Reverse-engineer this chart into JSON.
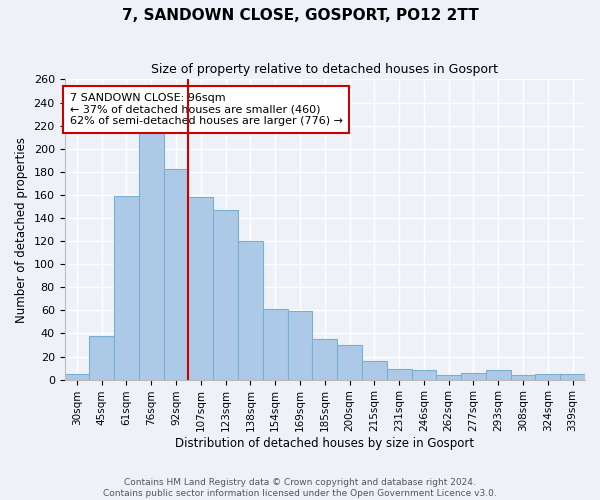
{
  "title": "7, SANDOWN CLOSE, GOSPORT, PO12 2TT",
  "subtitle": "Size of property relative to detached houses in Gosport",
  "xlabel": "Distribution of detached houses by size in Gosport",
  "ylabel": "Number of detached properties",
  "categories": [
    "30sqm",
    "45sqm",
    "61sqm",
    "76sqm",
    "92sqm",
    "107sqm",
    "123sqm",
    "138sqm",
    "154sqm",
    "169sqm",
    "185sqm",
    "200sqm",
    "215sqm",
    "231sqm",
    "246sqm",
    "262sqm",
    "277sqm",
    "293sqm",
    "308sqm",
    "324sqm",
    "339sqm"
  ],
  "values": [
    5,
    38,
    159,
    219,
    182,
    158,
    147,
    120,
    61,
    59,
    35,
    30,
    16,
    9,
    8,
    4,
    6,
    8,
    4,
    5,
    5
  ],
  "bar_color": "#adc9e8",
  "bar_edge_color": "#7aafd4",
  "highlight_bar_index": 4,
  "highlight_line_color": "#cc0000",
  "annotation_title": "7 SANDOWN CLOSE: 96sqm",
  "annotation_line1": "← 37% of detached houses are smaller (460)",
  "annotation_line2": "62% of semi-detached houses are larger (776) →",
  "annotation_box_color": "#ffffff",
  "annotation_box_edge": "#cc0000",
  "ylim": [
    0,
    260
  ],
  "yticks": [
    0,
    20,
    40,
    60,
    80,
    100,
    120,
    140,
    160,
    180,
    200,
    220,
    240,
    260
  ],
  "footer1": "Contains HM Land Registry data © Crown copyright and database right 2024.",
  "footer2": "Contains public sector information licensed under the Open Government Licence v3.0.",
  "background_color": "#eef2f8",
  "grid_color": "#ffffff",
  "figsize": [
    6.0,
    5.0
  ],
  "dpi": 100
}
